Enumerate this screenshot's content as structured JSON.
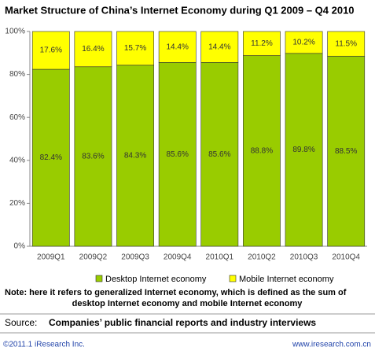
{
  "chart_data": {
    "type": "stacked_bar",
    "title": "Market Structure of China’s Internet Economy during Q1 2009 – Q4 2010",
    "categories": [
      "2009Q1",
      "2009Q2",
      "2009Q3",
      "2009Q4",
      "2010Q1",
      "2010Q2",
      "2010Q3",
      "2010Q4"
    ],
    "series": [
      {
        "name": "Desktop Internet economy",
        "color": "#99cc00",
        "values": [
          82.4,
          83.6,
          84.3,
          85.6,
          85.6,
          88.8,
          89.8,
          88.5
        ],
        "value_labels": [
          "82.4%",
          "83.6%",
          "84.3%",
          "85.6%",
          "85.6%",
          "88.8%",
          "89.8%",
          "88.5%"
        ]
      },
      {
        "name": "Mobile Internet economy",
        "color": "#ffff00",
        "values": [
          17.6,
          16.4,
          15.7,
          14.4,
          14.4,
          11.2,
          10.2,
          11.5
        ],
        "value_labels": [
          "17.6%",
          "16.4%",
          "15.7%",
          "14.4%",
          "14.4%",
          "11.2%",
          "10.2%",
          "11.5%"
        ]
      }
    ],
    "ylim": [
      0,
      100
    ],
    "yticks": [
      {
        "value": 0,
        "label": "0%"
      },
      {
        "value": 20,
        "label": "20%"
      },
      {
        "value": 40,
        "label": "40%"
      },
      {
        "value": 60,
        "label": "60%"
      },
      {
        "value": 80,
        "label": "80%"
      },
      {
        "value": 100,
        "label": "100%"
      }
    ],
    "grid": false,
    "legend": "bottom",
    "note": [
      "Note: here it refers to generalized Internet economy, which is defined as the sum of",
      "desktop Internet economy and mobile Internet economy"
    ],
    "source_label": "Source:",
    "source": "Companies’ public financial reports and industry interviews",
    "copyright": "©2011.1 iResearch Inc.",
    "website": "www.iresearch.com.cn"
  }
}
